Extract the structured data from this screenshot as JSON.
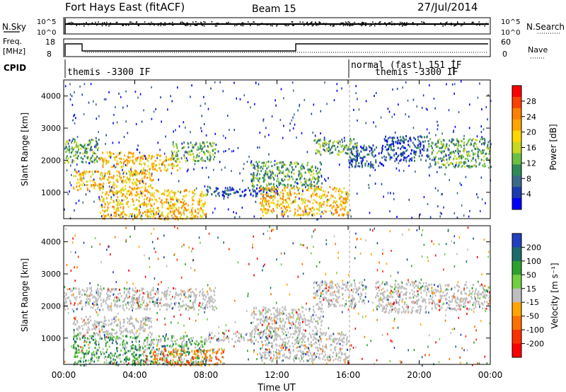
{
  "header": {
    "site": "Fort Hays East (fitACF)",
    "beam": "Beam 15",
    "date": "27/Jul/2014"
  },
  "strip_panels": {
    "nsky": {
      "label": "N.Sky",
      "ticks": [
        "10^5",
        "10^0"
      ]
    },
    "nsearch": {
      "label": "N.Search",
      "ticks": [
        "10^5",
        "10^0"
      ]
    },
    "freq": {
      "label_line1": "Freq.",
      "label_line2": "[MHz]",
      "ticks": [
        "18",
        "8"
      ]
    },
    "nave": {
      "label": "Nave",
      "ticks": [
        "60",
        "0"
      ]
    },
    "cpid": {
      "label": "CPID",
      "modes": [
        {
          "text": "themis -3300 IF",
          "start_h": 0,
          "end_h": 16
        },
        {
          "text": "normal (fast) 151 IF",
          "start_h": 16,
          "end_h": 22
        },
        {
          "text": "themis -3300 IF",
          "start_h": 16,
          "end_h": 22
        }
      ]
    }
  },
  "axes": {
    "ylabel": "Slant Range [km]",
    "yticks": [
      "4000",
      "3000",
      "2000",
      "1000"
    ],
    "xlabel": "Time UT",
    "xticks": [
      "00:00",
      "04:00",
      "08:00",
      "12:00",
      "16:00",
      "20:00",
      "00:00"
    ]
  },
  "power_colorbar": {
    "label": "Power [dB]",
    "ticks": [
      "28",
      "24",
      "20",
      "16",
      "12",
      "8",
      "4"
    ],
    "colors": [
      "#ff0000",
      "#ff4000",
      "#ff8000",
      "#ffa500",
      "#ffd700",
      "#c8d820",
      "#6bbf45",
      "#2e8b57",
      "#3a6a8a",
      "#1c3bb0",
      "#0000ff"
    ]
  },
  "velocity_colorbar": {
    "label": "Velocity [m s⁻¹]",
    "ticks": [
      "200",
      "100",
      "50",
      "15",
      "-15",
      "-50",
      "-100",
      "-200"
    ],
    "colors": [
      "#2040c0",
      "#1c6b6b",
      "#2ea02e",
      "#70d040",
      "#bebebe",
      "#ffa500",
      "#ff7000",
      "#ff3000",
      "#ff0000"
    ]
  },
  "chart_data": [
    {
      "type": "heatmap",
      "title": "Power",
      "x_range_hours": [
        0,
        24
      ],
      "y_range_km": [
        180,
        4500
      ],
      "scatter_regions": [
        {
          "t0": 0.0,
          "t1": 2.0,
          "r0": 1950,
          "r1": 2700,
          "level": "mid"
        },
        {
          "t0": 2.0,
          "t1": 4.0,
          "r0": 1800,
          "r1": 2300,
          "level": "high"
        },
        {
          "t0": 4.0,
          "t1": 6.5,
          "r0": 1700,
          "r1": 2200,
          "level": "high"
        },
        {
          "t0": 6.0,
          "t1": 8.5,
          "r0": 2000,
          "r1": 2600,
          "level": "mid"
        },
        {
          "t0": 0.5,
          "t1": 5.0,
          "r0": 1100,
          "r1": 1700,
          "level": "high"
        },
        {
          "t0": 2.0,
          "t1": 8.0,
          "r0": 180,
          "r1": 1100,
          "level": "high"
        },
        {
          "t0": 8.0,
          "t1": 12.0,
          "r0": 900,
          "r1": 1200,
          "level": "low"
        },
        {
          "t0": 10.5,
          "t1": 14.5,
          "r0": 1200,
          "r1": 2000,
          "level": "mid"
        },
        {
          "t0": 11.0,
          "t1": 16.0,
          "r0": 300,
          "r1": 1200,
          "level": "high"
        },
        {
          "t0": 14.0,
          "t1": 16.5,
          "r0": 2200,
          "r1": 2700,
          "level": "mid"
        },
        {
          "t0": 16.0,
          "t1": 18.0,
          "r0": 1800,
          "r1": 2500,
          "level": "low"
        },
        {
          "t0": 18.0,
          "t1": 20.5,
          "r0": 2000,
          "r1": 2800,
          "level": "low"
        },
        {
          "t0": 20.5,
          "t1": 24.0,
          "r0": 1800,
          "r1": 2700,
          "level": "mid"
        }
      ]
    },
    {
      "type": "heatmap",
      "title": "Velocity",
      "x_range_hours": [
        0,
        24
      ],
      "y_range_km": [
        180,
        4500
      ],
      "scatter_regions": [
        {
          "t0": 0.0,
          "t1": 8.5,
          "r0": 1900,
          "r1": 2600,
          "level": "ground"
        },
        {
          "t0": 0.5,
          "t1": 5.0,
          "r0": 1100,
          "r1": 1700,
          "level": "ground"
        },
        {
          "t0": 0.5,
          "t1": 8.0,
          "r0": 180,
          "r1": 1100,
          "level": "positive"
        },
        {
          "t0": 5.0,
          "t1": 9.0,
          "r0": 180,
          "r1": 700,
          "level": "negative"
        },
        {
          "t0": 8.0,
          "t1": 12.0,
          "r0": 900,
          "r1": 1200,
          "level": "ground"
        },
        {
          "t0": 10.5,
          "t1": 14.5,
          "r0": 1200,
          "r1": 2000,
          "level": "ground"
        },
        {
          "t0": 11.0,
          "t1": 16.0,
          "r0": 300,
          "r1": 1200,
          "level": "ground"
        },
        {
          "t0": 14.0,
          "t1": 17.0,
          "r0": 2000,
          "r1": 2800,
          "level": "ground"
        },
        {
          "t0": 17.5,
          "t1": 20.5,
          "r0": 1800,
          "r1": 2800,
          "level": "ground"
        },
        {
          "t0": 20.5,
          "t1": 24.0,
          "r0": 1900,
          "r1": 2700,
          "level": "ground"
        }
      ]
    }
  ]
}
